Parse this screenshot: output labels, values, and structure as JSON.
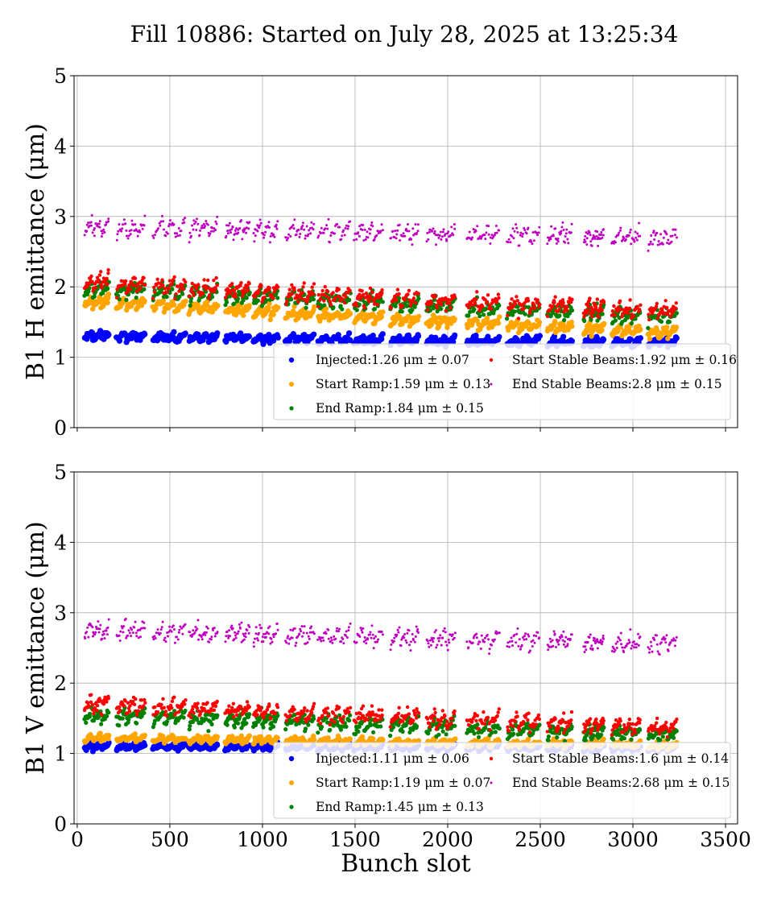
{
  "chart_data": {
    "type": "scatter",
    "title": "Fill 10886: Started on July 28, 2025 at 13:25:34",
    "xlabel": "Bunch slot",
    "xlim": [
      -17,
      3565
    ],
    "xticks": [
      0,
      500,
      1000,
      1500,
      2000,
      2500,
      3000,
      3500
    ],
    "grid": true,
    "trains": [
      [
        40,
        170
      ],
      [
        213,
        365
      ],
      [
        409,
        583
      ],
      [
        604,
        757
      ],
      [
        800,
        930
      ],
      [
        952,
        1083
      ],
      [
        1126,
        1278
      ],
      [
        1300,
        1474
      ],
      [
        1496,
        1648
      ],
      [
        1691,
        1843
      ],
      [
        1887,
        2039
      ],
      [
        2104,
        2278
      ],
      [
        2322,
        2496
      ],
      [
        2539,
        2670
      ],
      [
        2735,
        2843
      ],
      [
        2887,
        3039
      ],
      [
        3083,
        3235
      ]
    ],
    "panels": [
      {
        "ylabel": "B1 H emittance (μm)",
        "ylim": [
          0,
          5
        ],
        "yticks": [
          0,
          1,
          2,
          3,
          4,
          5
        ],
        "legend_position": "lower-right",
        "series": [
          {
            "name": "Injected",
            "legend": "Injected:1.26 μm ± 0.07",
            "color": "#0000ff",
            "level_first_train": 1.3,
            "level_last_train": 1.2,
            "spread": 0.07
          },
          {
            "name": "Start Ramp",
            "legend": "Start Ramp:1.59 μm ± 0.13",
            "color": "#ffa500",
            "level_first_train": 1.78,
            "level_last_train": 1.35,
            "spread": 0.09
          },
          {
            "name": "End Ramp",
            "legend": "End Ramp:1.84 μm ± 0.15",
            "color": "#008000",
            "level_first_train": 1.98,
            "level_last_train": 1.58,
            "spread": 0.13
          },
          {
            "name": "Start Stable Beams",
            "legend": "Start Stable Beams:1.92 μm ± 0.16",
            "color": "#ff0000",
            "level_first_train": 2.05,
            "level_last_train": 1.65,
            "spread": 0.14
          },
          {
            "name": "End Stable Beams",
            "legend": "End Stable Beams:2.8 μm ± 0.15",
            "color": "#bf00bf",
            "level_first_train": 2.85,
            "level_last_train": 2.7,
            "spread": 0.15
          }
        ]
      },
      {
        "ylabel": "B1 V emittance (μm)",
        "ylim": [
          0,
          5
        ],
        "yticks": [
          0,
          1,
          2,
          3,
          4,
          5
        ],
        "legend_position": "lower-right",
        "series": [
          {
            "name": "Injected",
            "legend": "Injected:1.11 μm ± 0.06",
            "color": "#0000ff",
            "level_first_train": 1.1,
            "level_last_train": 1.08,
            "spread": 0.05
          },
          {
            "name": "Start Ramp",
            "legend": "Start Ramp:1.19 μm ± 0.07",
            "color": "#ffa500",
            "level_first_train": 1.22,
            "level_last_train": 1.12,
            "spread": 0.06
          },
          {
            "name": "End Ramp",
            "legend": "End Ramp:1.45 μm ± 0.13",
            "color": "#008000",
            "level_first_train": 1.55,
            "level_last_train": 1.27,
            "spread": 0.13
          },
          {
            "name": "Start Stable Beams",
            "legend": "Start Stable Beams:1.6 μm ± 0.14",
            "color": "#ff0000",
            "level_first_train": 1.7,
            "level_last_train": 1.37,
            "spread": 0.13
          },
          {
            "name": "End Stable Beams",
            "legend": "End Stable Beams:2.68 μm ± 0.15",
            "color": "#bf00bf",
            "level_first_train": 2.75,
            "level_last_train": 2.56,
            "spread": 0.15
          }
        ]
      }
    ]
  }
}
